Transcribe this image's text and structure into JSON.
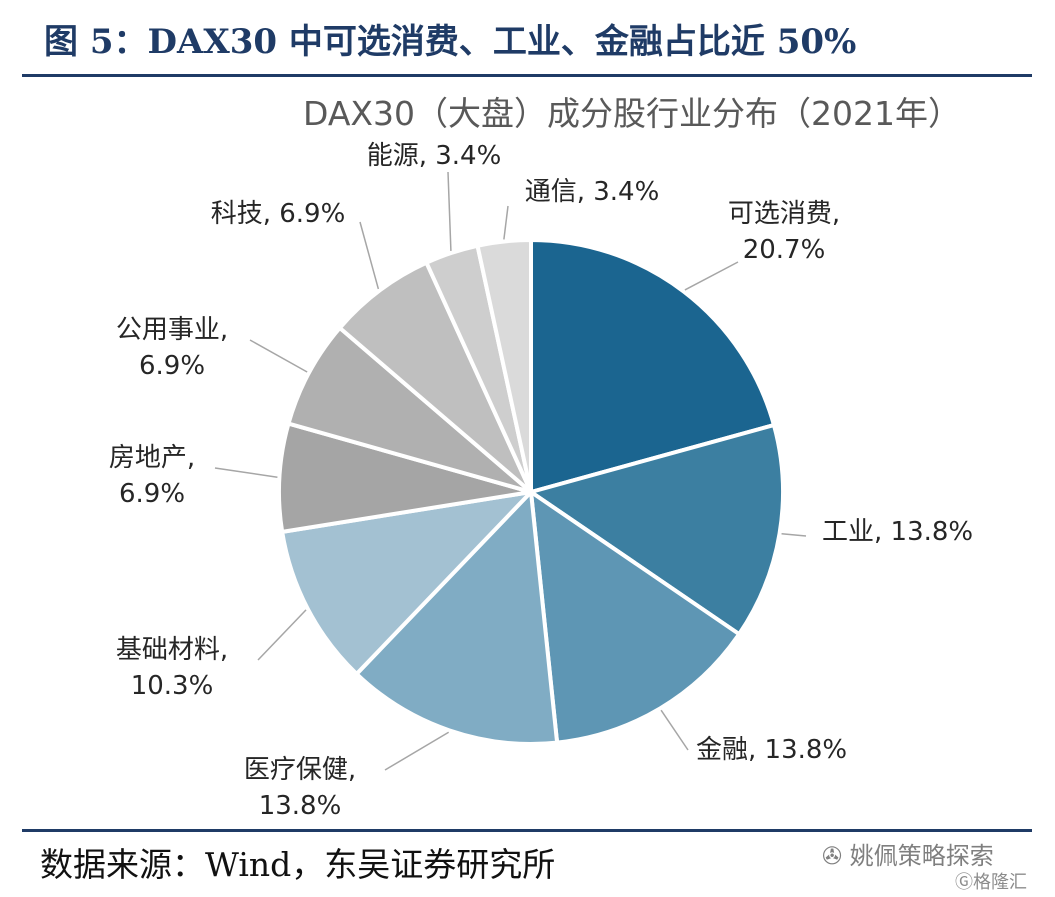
{
  "figure": {
    "title": "图 5：DAX30 中可选消费、工业、金融占比近 50%"
  },
  "chart_data": {
    "type": "pie",
    "title": "DAX30（大盘）成分股行业分布（2021年）",
    "slices": [
      {
        "label": "可选消费,",
        "display": "20.7%",
        "value": 20.7,
        "color": "#1b6590"
      },
      {
        "label": "工业,",
        "display": "13.8%",
        "value": 13.8,
        "color": "#3c7fa1"
      },
      {
        "label": "金融,",
        "display": "13.8%",
        "value": 13.8,
        "color": "#5e96b4"
      },
      {
        "label": "医疗保健,",
        "display": "13.8%",
        "value": 13.8,
        "color": "#80acc4"
      },
      {
        "label": "基础材料,",
        "display": "10.3%",
        "value": 10.3,
        "color": "#a3c1d2"
      },
      {
        "label": "房地产,",
        "display": "6.9%",
        "value": 6.9,
        "color": "#a5a5a5"
      },
      {
        "label": "公用事业,",
        "display": "6.9%",
        "value": 6.9,
        "color": "#b0b0b0"
      },
      {
        "label": "科技,",
        "display": "6.9%",
        "value": 6.9,
        "color": "#bfbfbf"
      },
      {
        "label": "能源,",
        "display": "3.4%",
        "value": 3.4,
        "color": "#cecece"
      },
      {
        "label": "通信,",
        "display": "3.4%",
        "value": 3.4,
        "color": "#dadada"
      }
    ]
  },
  "source": "数据来源：Wind，东吴证券研究所",
  "watermark": {
    "account": "姚佩策略探索",
    "brand": "格隆汇"
  }
}
